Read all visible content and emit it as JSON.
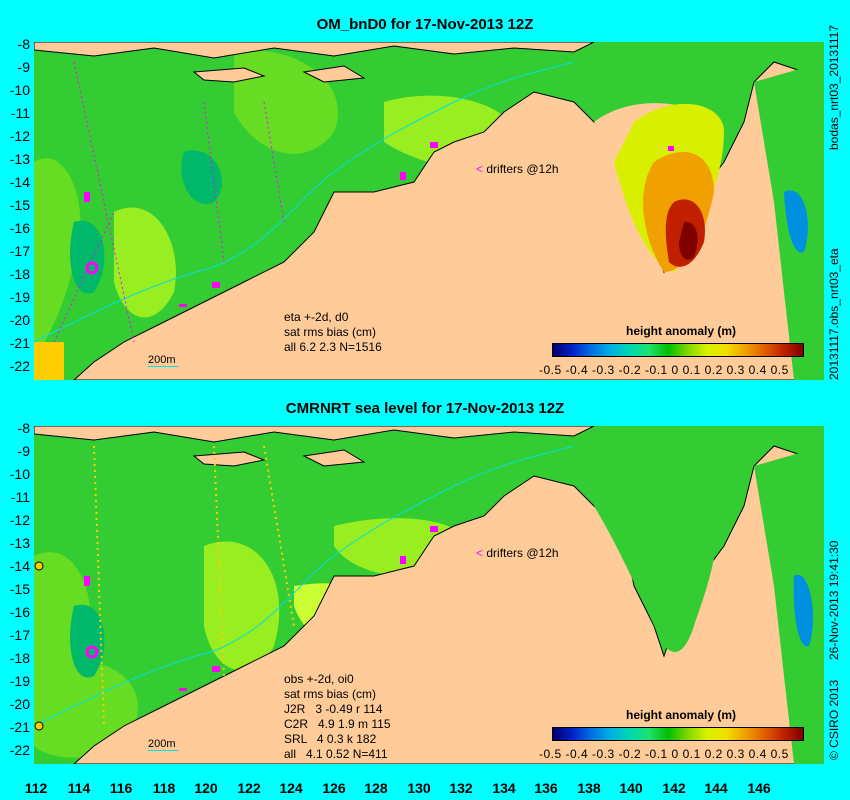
{
  "top": {
    "title": "OM_bnD0 for 17-Nov-2013 12Z",
    "side_label_1": "bodas_nrt03_20131117",
    "side_label_2": "20131117.obs_nrt03_eta",
    "notes": [
      "eta +-2d, d0",
      "sat rms bias (cm)",
      "all 6.2 2.3 N=1516"
    ],
    "scale_label": "200m",
    "drifters_label": "drifters @12h",
    "colorbar_title": "height anomaly (m)",
    "colorbar_ticks": "-0.5 -0.4 -0.3 -0.2 -0.1   0   0.1  0.2  0.3  0.4  0.5"
  },
  "bottom": {
    "title": "CMRNRT sea level  for 17-Nov-2013 12Z",
    "side_label_1": "26-Nov-2013 19:41:30",
    "side_label_2": "© CSIRO 2013",
    "notes": [
      "obs +-2d, oi0",
      "sat rms bias (cm)",
      "J2R   3 -0.49 r 114",
      "C2R   4.9 1.9 m 115",
      "SRL   4 0.3 k 182",
      "all   4.1 0.52 N=411"
    ],
    "scale_label": "200m",
    "drifters_label": "drifters @12h",
    "colorbar_title": "height anomaly (m)",
    "colorbar_ticks": "-0.5 -0.4 -0.3 -0.2 -0.1   0   0.1  0.2  0.3  0.4  0.5"
  },
  "y_ticks": [
    "-8",
    "-9",
    "-10",
    "-11",
    "-12",
    "-13",
    "-14",
    "-15",
    "-16",
    "-17",
    "-18",
    "-19",
    "-20",
    "-21",
    "-22"
  ],
  "x_ticks": [
    "112",
    "114",
    "116",
    "118",
    "120",
    "122",
    "124",
    "126",
    "128",
    "130",
    "132",
    "134",
    "136",
    "138",
    "140",
    "142",
    "144",
    "146"
  ],
  "colors": {
    "background": "#00ffff",
    "land": "#ffcc99",
    "sea": "#33cc33",
    "positive": "#ccff33",
    "drifter": "#ff00ff"
  }
}
